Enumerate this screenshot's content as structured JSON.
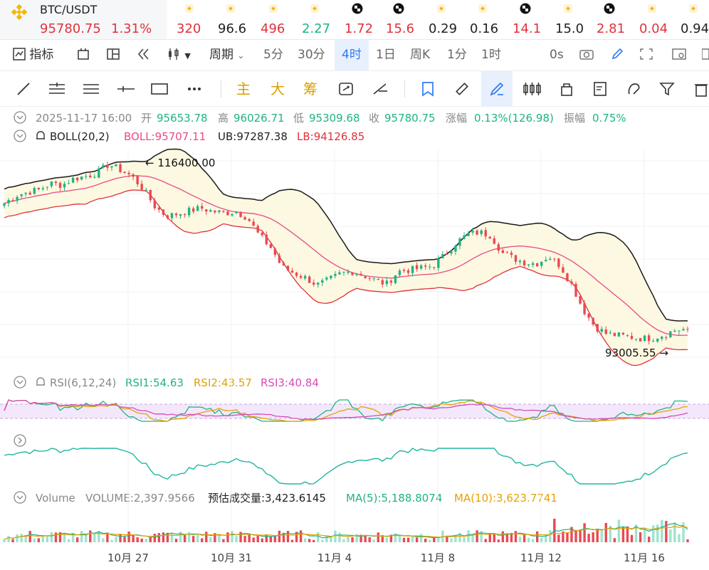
{
  "pair": {
    "symbol": "BTC/USDT",
    "price": "95780.75",
    "change_pct": "1.31%"
  },
  "tickers": [
    {
      "icon": "bnb-icon",
      "value": "320",
      "tone": "up"
    },
    {
      "icon": "bnb-icon",
      "value": "96.6",
      "tone": "nt"
    },
    {
      "icon": "bnb-icon",
      "value": "496",
      "tone": "up"
    },
    {
      "icon": "bnb-icon",
      "value": "2.27",
      "tone": "dn"
    },
    {
      "icon": "checker-icon",
      "value": "1.72",
      "tone": "up"
    },
    {
      "icon": "checker-icon",
      "value": "15.6",
      "tone": "up"
    },
    {
      "icon": "bnb-icon",
      "value": "0.29",
      "tone": "nt"
    },
    {
      "icon": "bnb-icon",
      "value": "0.16",
      "tone": "nt"
    },
    {
      "icon": "checker-icon",
      "value": "14.1",
      "tone": "up"
    },
    {
      "icon": "bnb-icon",
      "value": "15.0",
      "tone": "nt"
    },
    {
      "icon": "checker-icon",
      "value": "2.81",
      "tone": "up"
    },
    {
      "icon": "bnb-icon",
      "value": "0.04",
      "tone": "up"
    },
    {
      "icon": "bnb-icon",
      "value": "0.94",
      "tone": "nt"
    }
  ],
  "toolbar": {
    "indicators": "指标",
    "period": "周期",
    "intervals": [
      "5分",
      "30分",
      "4时",
      "1日",
      "周K",
      "1分",
      "1时"
    ],
    "selected_interval": "4时",
    "countdown": "0s"
  },
  "drawing_tools": {
    "main": "主",
    "big": "大",
    "chip": "筹"
  },
  "ohlc": {
    "date": "2025-11-17 16:00",
    "open_label": "开",
    "open": "95653.78",
    "high_label": "高",
    "high": "96026.71",
    "low_label": "低",
    "low": "95309.68",
    "close_label": "收",
    "close": "95780.75",
    "change_label": "涨幅",
    "change": "0.13%(126.98)",
    "amplitude_label": "振幅",
    "amplitude": "0.75%"
  },
  "boll": {
    "name": "BOLL(20,2)",
    "boll": "BOLL:95707.11",
    "ub": "UB:97287.38",
    "lb": "LB:94126.85"
  },
  "rsi": {
    "name": "RSI(6,12,24)",
    "rsi1": "RSI1:54.63",
    "rsi2": "RSI2:43.57",
    "rsi3": "RSI3:40.84"
  },
  "volume": {
    "name": "Volume",
    "volume": "VOLUME:2,397.9566",
    "estimate": "预估成交量:3,423.6145",
    "ma5": "MA(5):5,188.8074",
    "ma10": "MA(10):3,623.7741"
  },
  "chart_data": {
    "type": "candlestick",
    "interval": "4h",
    "x_tick_labels": [
      "10月 27",
      "10月 31",
      "11月 4",
      "11月 8",
      "11月 12",
      "11月 16"
    ],
    "annotations": {
      "max": "116400.00",
      "min": "93005.55"
    },
    "close_trajectory": [
      111500,
      112500,
      112900,
      113200,
      114000,
      113800,
      114600,
      114900,
      115300,
      116400,
      115700,
      114900,
      113300,
      111100,
      109900,
      110200,
      110600,
      110900,
      110500,
      110300,
      110500,
      109700,
      107500,
      106000,
      103500,
      102800,
      102200,
      101300,
      101900,
      102700,
      103000,
      102500,
      101900,
      101400,
      103000,
      103200,
      103400,
      103700,
      105000,
      106600,
      107600,
      107900,
      107500,
      105300,
      104600,
      104100,
      104000,
      104900,
      103700,
      101300,
      98200,
      96100,
      95200,
      95000,
      94800,
      94600,
      94700,
      95100,
      95700,
      95780
    ],
    "rsi_range": [
      0,
      100
    ],
    "colors": {
      "up": "#e84a52",
      "down": "#1fb386",
      "boll": "#e84a8a",
      "ub": "#1a1a1a",
      "lb": "#e0323c",
      "band_fill": "#fdf8e1",
      "rsi1": "#1fb386",
      "rsi2": "#e6a100",
      "rsi3": "#d94ab7",
      "ma5": "#1fb386",
      "ma10": "#e6a100"
    }
  }
}
